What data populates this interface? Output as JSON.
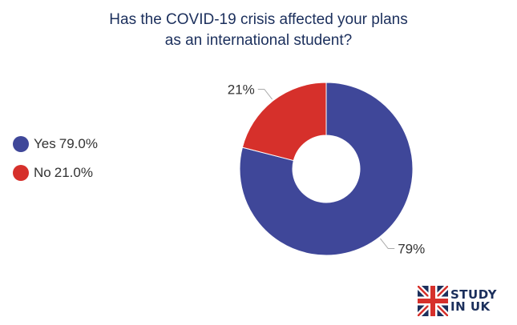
{
  "title": {
    "line1": "Has the COVID-19 crisis affected your plans",
    "line2": "as an international student?"
  },
  "legend": [
    {
      "label": "Yes",
      "value": "79.0%",
      "color": "#3f4799"
    },
    {
      "label": "No",
      "value": "21.0%",
      "color": "#d6302b"
    }
  ],
  "chart_data": {
    "type": "pie",
    "donut": true,
    "title": "Has the COVID-19 crisis affected your plans as an international student?",
    "categories": [
      "Yes",
      "No"
    ],
    "values": [
      79,
      21
    ],
    "data_labels": [
      "79%",
      "21%"
    ],
    "colors": [
      "#3f4799",
      "#d6302b"
    ],
    "legend_position": "left"
  },
  "logo": {
    "line1": "STUDY",
    "line2": "IN UK",
    "colors": {
      "blue": "#1b2f5c",
      "red": "#d6302b"
    }
  }
}
